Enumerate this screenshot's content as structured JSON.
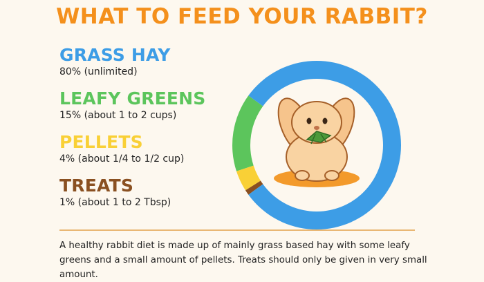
{
  "title": "WHAT TO FEED YOUR RABBIT?",
  "chart_data": {
    "type": "pie",
    "categories": [
      "GRASS HAY",
      "LEAFY GREENS",
      "PELLETS",
      "TREATS"
    ],
    "values": [
      80,
      15,
      4,
      1
    ],
    "colors": [
      "#3d9de6",
      "#5cc55c",
      "#f9d036",
      "#8a5021"
    ],
    "descriptions": [
      "80% (unlimited)",
      "15% (about 1 to 2 cups)",
      "4% (about 1/4 to 1/2 cup)",
      "1% (about 1 to 2 Tbsp)"
    ],
    "style": "donut",
    "center_image": "rabbit-eating-leaf"
  },
  "caption": "A healthy rabbit diet is made up of mainly grass based hay with some leafy greens and a small amount of pellets. Treats should only be given in very small amount."
}
